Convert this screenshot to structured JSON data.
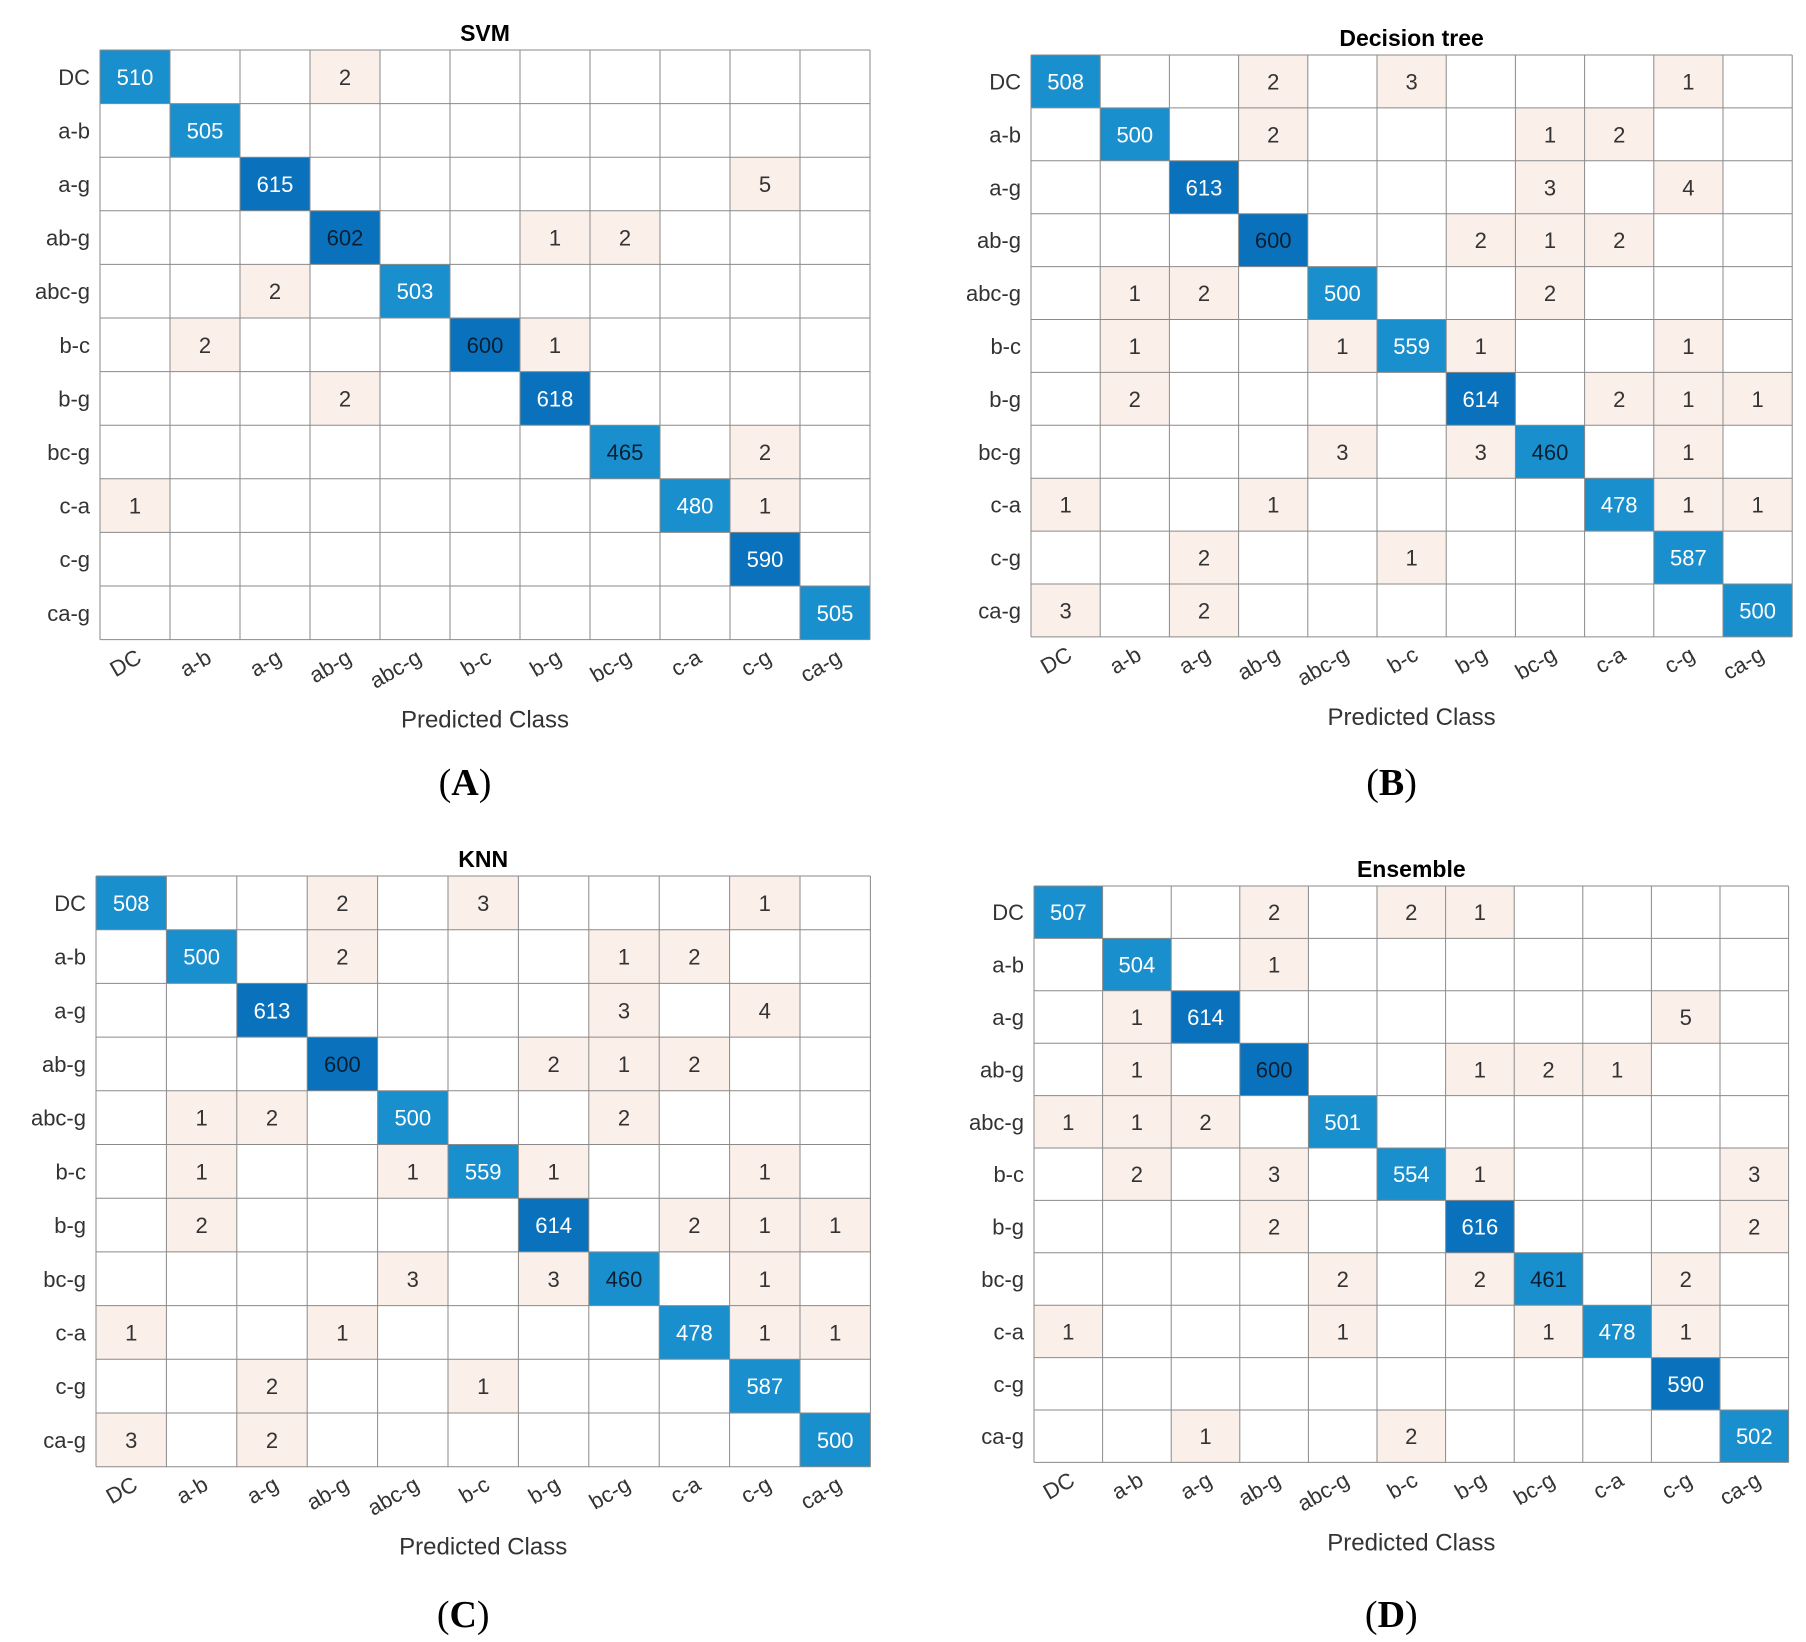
{
  "figure": {
    "panels": [
      {
        "letter": "A",
        "title": "SVM"
      },
      {
        "letter": "B",
        "title": "Decision tree"
      },
      {
        "letter": "C",
        "title": "KNN"
      },
      {
        "letter": "D",
        "title": "Ensemble"
      }
    ]
  },
  "colors": {
    "diagonal_light": "#1a8fce",
    "diagonal_dark": "#0a72bd",
    "diagonal_text_light": "#ffffff",
    "diagonal_text_dark": "#0b1f33",
    "offdiag_fill": "#fbefea",
    "offdiag_text": "#333333",
    "grid": "#8a8a8a"
  },
  "chart_data": [
    {
      "type": "heatmap",
      "panel": "A",
      "title": "SVM",
      "xlabel": "Predicted Class",
      "ylabel": "",
      "classes": [
        "DC",
        "a-b",
        "a-g",
        "ab-g",
        "abc-g",
        "b-c",
        "b-g",
        "bc-g",
        "c-a",
        "c-g",
        "ca-g"
      ],
      "matrix": [
        [
          510,
          0,
          0,
          2,
          0,
          0,
          0,
          0,
          0,
          0,
          0
        ],
        [
          0,
          505,
          0,
          0,
          0,
          0,
          0,
          0,
          0,
          0,
          0
        ],
        [
          0,
          0,
          615,
          0,
          0,
          0,
          0,
          0,
          0,
          5,
          0
        ],
        [
          0,
          0,
          0,
          602,
          0,
          0,
          1,
          2,
          0,
          0,
          0
        ],
        [
          0,
          0,
          2,
          0,
          503,
          0,
          0,
          0,
          0,
          0,
          0
        ],
        [
          0,
          2,
          0,
          0,
          0,
          600,
          1,
          0,
          0,
          0,
          0
        ],
        [
          0,
          0,
          0,
          2,
          0,
          0,
          618,
          0,
          0,
          0,
          0
        ],
        [
          0,
          0,
          0,
          0,
          0,
          0,
          0,
          465,
          0,
          2,
          0
        ],
        [
          1,
          0,
          0,
          0,
          0,
          0,
          0,
          0,
          480,
          1,
          0
        ],
        [
          0,
          0,
          0,
          0,
          0,
          0,
          0,
          0,
          0,
          590,
          0
        ],
        [
          0,
          0,
          0,
          0,
          0,
          0,
          0,
          0,
          0,
          0,
          505
        ]
      ]
    },
    {
      "type": "heatmap",
      "panel": "B",
      "title": "Decision tree",
      "xlabel": "Predicted Class",
      "ylabel": "",
      "classes": [
        "DC",
        "a-b",
        "a-g",
        "ab-g",
        "abc-g",
        "b-c",
        "b-g",
        "bc-g",
        "c-a",
        "c-g",
        "ca-g"
      ],
      "matrix": [
        [
          508,
          0,
          0,
          2,
          0,
          3,
          0,
          0,
          0,
          1,
          0
        ],
        [
          0,
          500,
          0,
          2,
          0,
          0,
          0,
          1,
          2,
          0,
          0
        ],
        [
          0,
          0,
          613,
          0,
          0,
          0,
          0,
          3,
          0,
          4,
          0
        ],
        [
          0,
          0,
          0,
          600,
          0,
          0,
          2,
          1,
          2,
          0,
          0
        ],
        [
          0,
          1,
          2,
          0,
          500,
          0,
          0,
          2,
          0,
          0,
          0
        ],
        [
          0,
          1,
          0,
          0,
          1,
          559,
          1,
          0,
          0,
          1,
          0
        ],
        [
          0,
          2,
          0,
          0,
          0,
          0,
          614,
          0,
          2,
          1,
          1
        ],
        [
          0,
          0,
          0,
          0,
          3,
          0,
          3,
          460,
          0,
          1,
          0
        ],
        [
          1,
          0,
          0,
          1,
          0,
          0,
          0,
          0,
          478,
          1,
          1
        ],
        [
          0,
          0,
          2,
          0,
          0,
          1,
          0,
          0,
          0,
          587,
          0
        ],
        [
          3,
          0,
          2,
          0,
          0,
          0,
          0,
          0,
          0,
          0,
          500
        ]
      ]
    },
    {
      "type": "heatmap",
      "panel": "C",
      "title": "KNN",
      "xlabel": "Predicted Class",
      "ylabel": "",
      "classes": [
        "DC",
        "a-b",
        "a-g",
        "ab-g",
        "abc-g",
        "b-c",
        "b-g",
        "bc-g",
        "c-a",
        "c-g",
        "ca-g"
      ],
      "matrix": [
        [
          508,
          0,
          0,
          2,
          0,
          3,
          0,
          0,
          0,
          1,
          0
        ],
        [
          0,
          500,
          0,
          2,
          0,
          0,
          0,
          1,
          2,
          0,
          0
        ],
        [
          0,
          0,
          613,
          0,
          0,
          0,
          0,
          3,
          0,
          4,
          0
        ],
        [
          0,
          0,
          0,
          600,
          0,
          0,
          2,
          1,
          2,
          0,
          0
        ],
        [
          0,
          1,
          2,
          0,
          500,
          0,
          0,
          2,
          0,
          0,
          0
        ],
        [
          0,
          1,
          0,
          0,
          1,
          559,
          1,
          0,
          0,
          1,
          0
        ],
        [
          0,
          2,
          0,
          0,
          0,
          0,
          614,
          0,
          2,
          1,
          1
        ],
        [
          0,
          0,
          0,
          0,
          3,
          0,
          3,
          460,
          0,
          1,
          0
        ],
        [
          1,
          0,
          0,
          1,
          0,
          0,
          0,
          0,
          478,
          1,
          1
        ],
        [
          0,
          0,
          2,
          0,
          0,
          1,
          0,
          0,
          0,
          587,
          0
        ],
        [
          3,
          0,
          2,
          0,
          0,
          0,
          0,
          0,
          0,
          0,
          500
        ]
      ]
    },
    {
      "type": "heatmap",
      "panel": "D",
      "title": "Ensemble",
      "xlabel": "Predicted Class",
      "ylabel": "",
      "classes": [
        "DC",
        "a-b",
        "a-g",
        "ab-g",
        "abc-g",
        "b-c",
        "b-g",
        "bc-g",
        "c-a",
        "c-g",
        "ca-g"
      ],
      "matrix": [
        [
          507,
          0,
          0,
          2,
          0,
          2,
          1,
          0,
          0,
          0,
          0
        ],
        [
          0,
          504,
          0,
          1,
          0,
          0,
          0,
          0,
          0,
          0,
          0
        ],
        [
          0,
          1,
          614,
          0,
          0,
          0,
          0,
          0,
          0,
          5,
          0
        ],
        [
          0,
          1,
          0,
          600,
          0,
          0,
          1,
          2,
          1,
          0,
          0
        ],
        [
          1,
          1,
          2,
          0,
          501,
          0,
          0,
          0,
          0,
          0,
          0
        ],
        [
          0,
          2,
          0,
          3,
          0,
          554,
          1,
          0,
          0,
          0,
          3
        ],
        [
          0,
          0,
          0,
          2,
          0,
          0,
          616,
          0,
          0,
          0,
          2
        ],
        [
          0,
          0,
          0,
          0,
          2,
          0,
          2,
          461,
          0,
          2,
          0
        ],
        [
          1,
          0,
          0,
          0,
          1,
          0,
          0,
          1,
          478,
          1,
          0
        ],
        [
          0,
          0,
          0,
          0,
          0,
          0,
          0,
          0,
          0,
          590,
          0
        ],
        [
          0,
          0,
          1,
          0,
          0,
          2,
          0,
          0,
          0,
          0,
          502
        ]
      ]
    }
  ]
}
